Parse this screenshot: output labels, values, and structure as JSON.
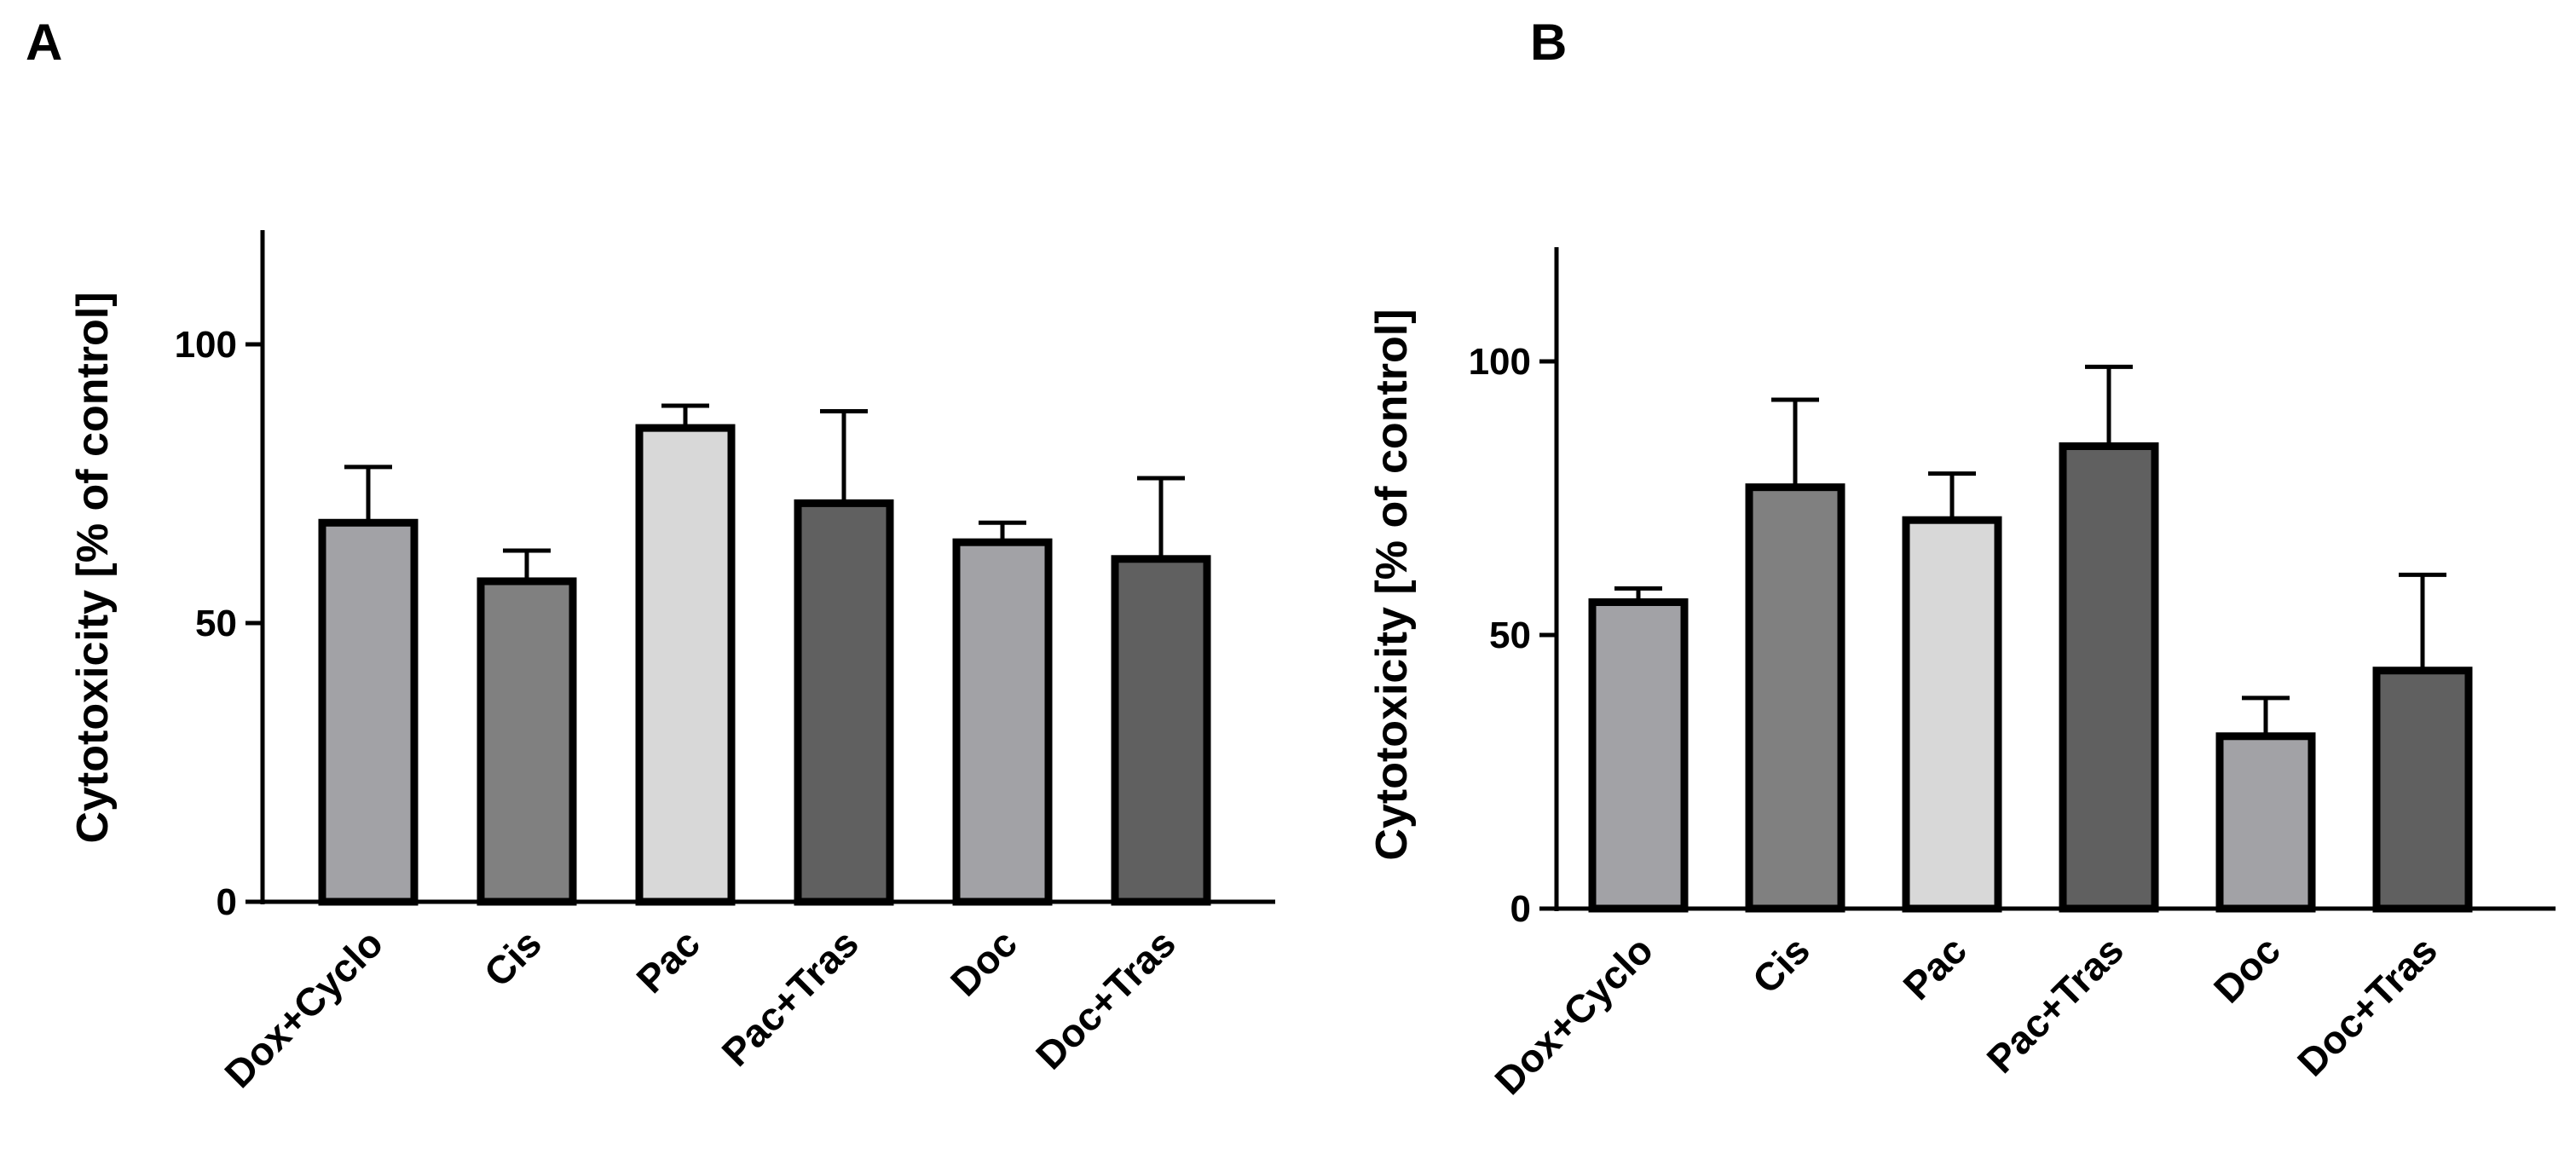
{
  "chart_data": [
    {
      "type": "bar",
      "panel": "A",
      "ylabel": "Cytotoxicity [% of control]",
      "xlabel": "",
      "ylim": [
        0,
        120
      ],
      "yticks": [
        0,
        50,
        100
      ],
      "categories": [
        "Dox+Cyclo",
        "Cis",
        "Pac",
        "Pac+Tras",
        "Doc",
        "Doc+Tras"
      ],
      "values": [
        68,
        57.5,
        85,
        71.5,
        64.5,
        61.5
      ],
      "errors": [
        10,
        5.5,
        4,
        16.5,
        3.5,
        14.5
      ],
      "colors": [
        "#a2a2a6",
        "#808080",
        "#d8d8d8",
        "#606060",
        "#a2a2a6",
        "#606060"
      ]
    },
    {
      "type": "bar",
      "panel": "B",
      "ylabel": "Cytotoxicity [% of control]",
      "xlabel": "",
      "ylim": [
        0,
        120
      ],
      "yticks": [
        0,
        50,
        100
      ],
      "categories": [
        "Dox+Cyclo",
        "Cis",
        "Pac",
        "Pac+Tras",
        "Doc",
        "Doc+Tras"
      ],
      "values": [
        56,
        77,
        71,
        84.5,
        31.5,
        43.5
      ],
      "errors": [
        2.5,
        16,
        8.5,
        14.5,
        7,
        17.5
      ],
      "colors": [
        "#a2a2a6",
        "#808080",
        "#d8d8d8",
        "#606060",
        "#a2a2a6",
        "#606060"
      ]
    }
  ]
}
